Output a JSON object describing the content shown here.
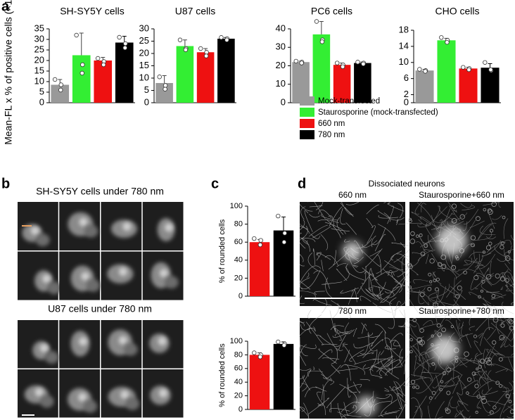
{
  "chart_data": [
    {
      "type": "bar",
      "title": "SH-SY5Y cells",
      "ylabel": "Mean-FL x % of positive cells (×10⁴)",
      "categories": [
        null,
        null,
        null,
        null
      ],
      "colors": [
        "#999999",
        "#33ee33",
        "#ee1111",
        "#000000"
      ],
      "values": [
        8.5,
        22.5,
        20,
        28.5
      ],
      "errors": [
        2.5,
        10.5,
        1.5,
        3
      ],
      "points": [
        [
          11,
          8.5,
          6
        ],
        [
          32,
          18,
          14
        ],
        [
          21,
          19.5,
          18
        ],
        [
          31,
          28,
          26
        ]
      ],
      "ylim": [
        0,
        35
      ],
      "yticks": [
        0,
        5,
        10,
        15,
        20,
        25,
        30,
        35
      ]
    },
    {
      "type": "bar",
      "title": "U87 cells",
      "categories": [
        null,
        null,
        null,
        null
      ],
      "colors": [
        "#999999",
        "#33ee33",
        "#ee1111",
        "#000000"
      ],
      "values": [
        8,
        23,
        20.5,
        26
      ],
      "errors": [
        3,
        2.5,
        1.5,
        0.5
      ],
      "points": [
        [
          10.5,
          7,
          5.5
        ],
        [
          25.5,
          22,
          21.5
        ],
        [
          22,
          20.5,
          19
        ],
        [
          26.5,
          26,
          25.5
        ]
      ],
      "ylim": [
        0,
        30
      ],
      "yticks": [
        0,
        5,
        10,
        15,
        20,
        25,
        30
      ]
    },
    {
      "type": "bar",
      "title": "PC6 cells",
      "categories": [
        null,
        null,
        null,
        null
      ],
      "colors": [
        "#999999",
        "#33ee33",
        "#ee1111",
        "#000000"
      ],
      "values": [
        22,
        37,
        20.5,
        21.5
      ],
      "errors": [
        0.5,
        7,
        1,
        0.5
      ],
      "points": [
        [
          22.5,
          22,
          21.5
        ],
        [
          44,
          34,
          33
        ],
        [
          21.5,
          20.5,
          19.5
        ],
        [
          22,
          21.5,
          21
        ]
      ],
      "ylim": [
        0,
        40
      ],
      "yticks": [
        0,
        10,
        20,
        30,
        40
      ]
    },
    {
      "type": "bar",
      "title": "CHO cells",
      "categories": [
        null,
        null,
        null,
        null
      ],
      "colors": [
        "#999999",
        "#33ee33",
        "#ee1111",
        "#000000"
      ],
      "values": [
        8,
        15.5,
        8.5,
        8.7
      ],
      "errors": [
        0.3,
        0.5,
        0.3,
        1
      ],
      "points": [
        [
          8.3,
          8,
          7.8
        ],
        [
          16.2,
          15.5,
          15
        ],
        [
          8.8,
          8.5,
          8.2
        ],
        [
          10,
          8,
          8.2
        ]
      ],
      "ylim": [
        0,
        18
      ],
      "yticks": [
        0,
        2,
        6,
        10,
        14,
        18
      ]
    },
    {
      "type": "bar",
      "ylabel": "% of rounded cells",
      "categories": [
        null,
        null
      ],
      "colors": [
        "#ee1111",
        "#000000"
      ],
      "values": [
        60,
        73
      ],
      "errors": [
        3,
        15
      ],
      "points": [
        [
          64,
          62,
          57
        ],
        [
          89,
          70,
          60
        ]
      ],
      "ylim": [
        0,
        100
      ],
      "yticks": [
        0,
        20,
        40,
        60,
        80,
        100
      ]
    },
    {
      "type": "bar",
      "ylabel": "% of rounded cells",
      "categories": [
        null,
        null
      ],
      "colors": [
        "#ee1111",
        "#000000"
      ],
      "values": [
        80,
        96
      ],
      "errors": [
        3,
        3
      ],
      "points": [
        [
          83,
          80,
          77
        ],
        [
          99,
          96,
          94
        ]
      ],
      "ylim": [
        0,
        100
      ],
      "yticks": [
        0,
        20,
        40,
        60,
        80,
        100
      ]
    }
  ],
  "legend": [
    {
      "name": "Mock-transfected",
      "color": "#999999"
    },
    {
      "name": "Staurosporine (mock-transfected)",
      "color": "#33ee33"
    },
    {
      "name": "660 nm",
      "color": "#ee1111"
    },
    {
      "name": "780 nm",
      "color": "#000000"
    }
  ],
  "panels": {
    "a": "a",
    "b": "b",
    "c": "c",
    "d": "d",
    "b_top": "SH-SY5Y cells under 780 nm",
    "b_bottom": "U87 cells under 780 nm",
    "d_title": "Dissociated neurons",
    "d_labels": [
      "660 nm",
      "Staurosporine+660 nm",
      "780 nm",
      "Staurosporine+780 nm"
    ]
  }
}
